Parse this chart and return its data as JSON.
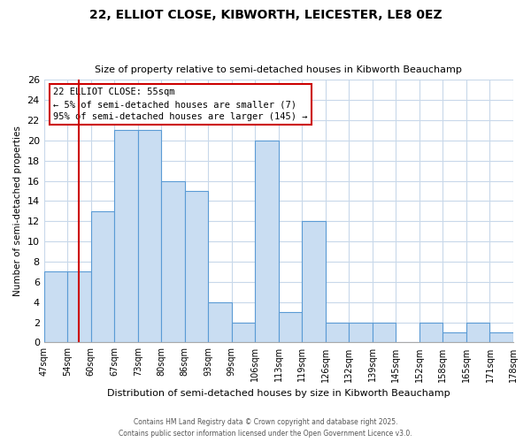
{
  "title1": "22, ELLIOT CLOSE, KIBWORTH, LEICESTER, LE8 0EZ",
  "title2": "Size of property relative to semi-detached houses in Kibworth Beauchamp",
  "xlabel": "Distribution of semi-detached houses by size in Kibworth Beauchamp",
  "ylabel": "Number of semi-detached properties",
  "tick_labels": [
    "47sqm",
    "54sqm",
    "60sqm",
    "67sqm",
    "73sqm",
    "80sqm",
    "86sqm",
    "93sqm",
    "99sqm",
    "106sqm",
    "113sqm",
    "119sqm",
    "126sqm",
    "132sqm",
    "139sqm",
    "145sqm",
    "152sqm",
    "158sqm",
    "165sqm",
    "171sqm",
    "178sqm"
  ],
  "counts": [
    7,
    7,
    13,
    21,
    21,
    16,
    15,
    4,
    2,
    20,
    3,
    12,
    2,
    2,
    2,
    0,
    2,
    1,
    2,
    1
  ],
  "bar_color": "#c9ddf2",
  "bar_edge_color": "#5b9bd5",
  "property_bin_index": 1,
  "property_line_color": "#cc0000",
  "ylim": [
    0,
    26
  ],
  "yticks": [
    0,
    2,
    4,
    6,
    8,
    10,
    12,
    14,
    16,
    18,
    20,
    22,
    24,
    26
  ],
  "annotation_title": "22 ELLIOT CLOSE: 55sqm",
  "annotation_line1": "← 5% of semi-detached houses are smaller (7)",
  "annotation_line2": "95% of semi-detached houses are larger (145) →",
  "annotation_box_color": "#ffffff",
  "annotation_box_edge": "#cc0000",
  "bg_color": "#ffffff",
  "grid_color": "#c8d8ea",
  "footer1": "Contains HM Land Registry data © Crown copyright and database right 2025.",
  "footer2": "Contains public sector information licensed under the Open Government Licence v3.0."
}
